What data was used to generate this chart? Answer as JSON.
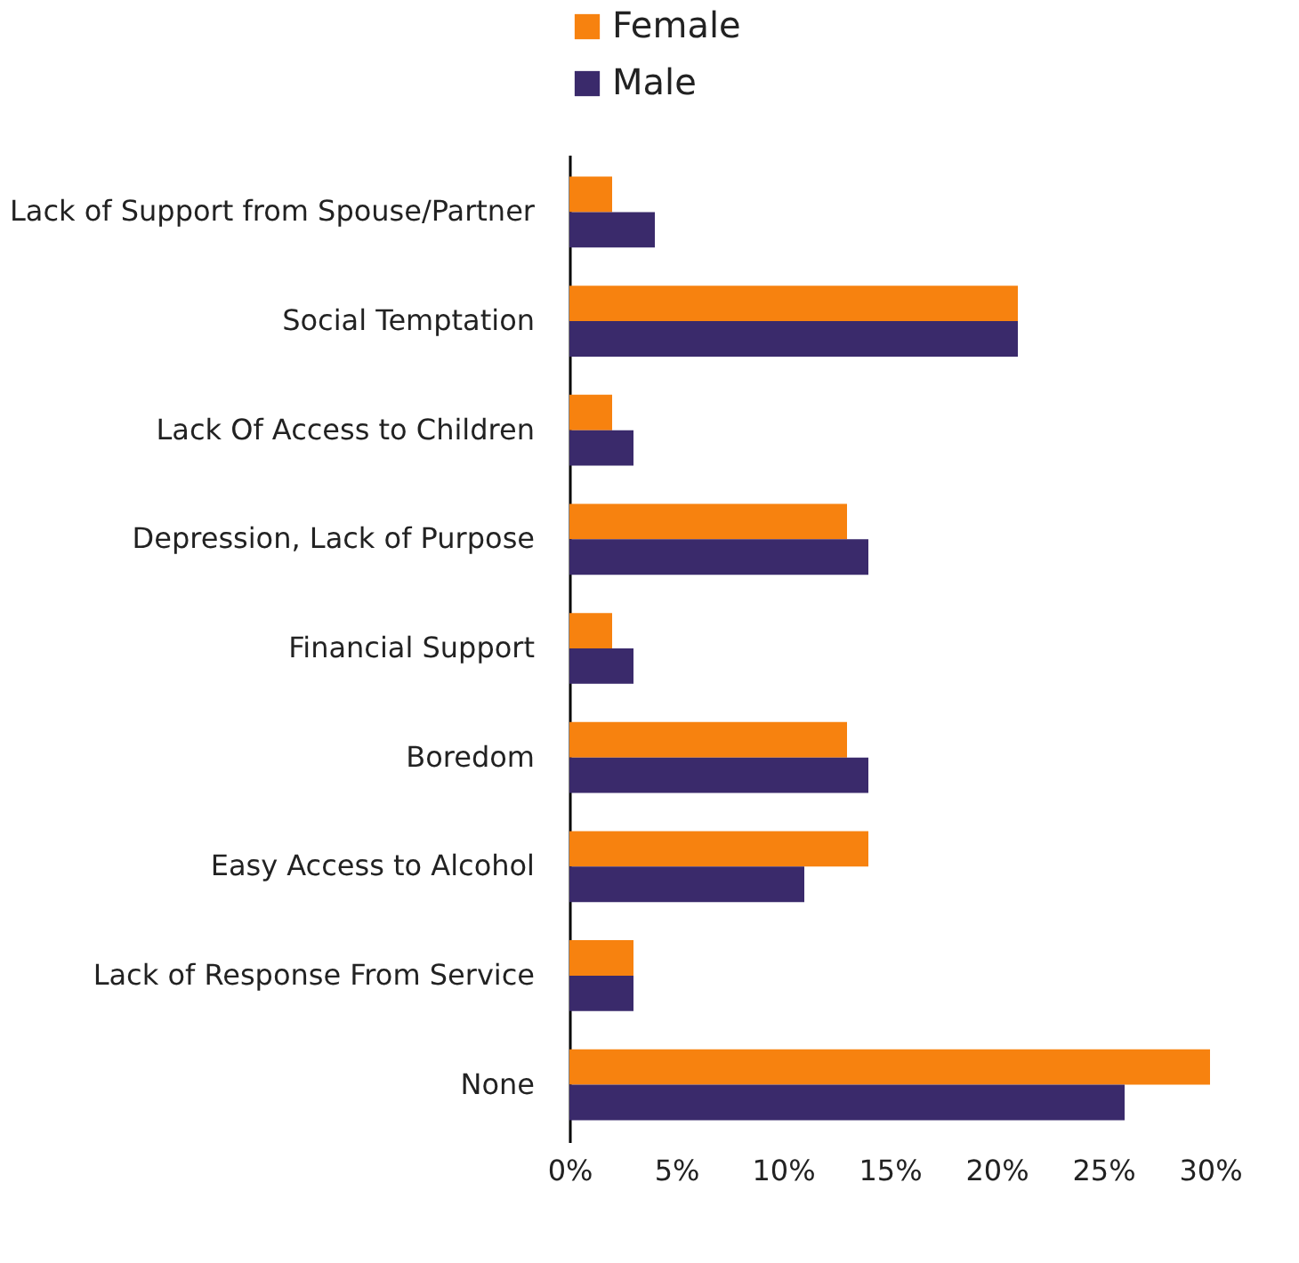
{
  "chart_data": {
    "type": "bar",
    "orientation": "horizontal",
    "legend": "top",
    "categories": [
      "Lack of Support from Spouse/Partner",
      "Social Temptation",
      "Lack Of Access to Children",
      "Depression, Lack of Purpose",
      "Financial Support",
      "Boredom",
      "Easy Access to Alcohol",
      "Lack of Response From Service",
      "None"
    ],
    "series": [
      {
        "name": "Female",
        "color": "#f7820f",
        "values": [
          2,
          21,
          2,
          13,
          2,
          13,
          14,
          3,
          30
        ]
      },
      {
        "name": "Male",
        "color": "#3a2a6b",
        "values": [
          4,
          21,
          3,
          14,
          3,
          14,
          11,
          3,
          26
        ]
      }
    ],
    "xlim": [
      0,
      30
    ],
    "xticks": [
      {
        "value": 0,
        "label": "0%"
      },
      {
        "value": 5,
        "label": "5%"
      },
      {
        "value": 10,
        "label": "10%"
      },
      {
        "value": 15,
        "label": "15%"
      },
      {
        "value": 20,
        "label": "20%"
      },
      {
        "value": 25,
        "label": "25%"
      },
      {
        "value": 30,
        "label": "30%"
      }
    ],
    "grid": false
  }
}
